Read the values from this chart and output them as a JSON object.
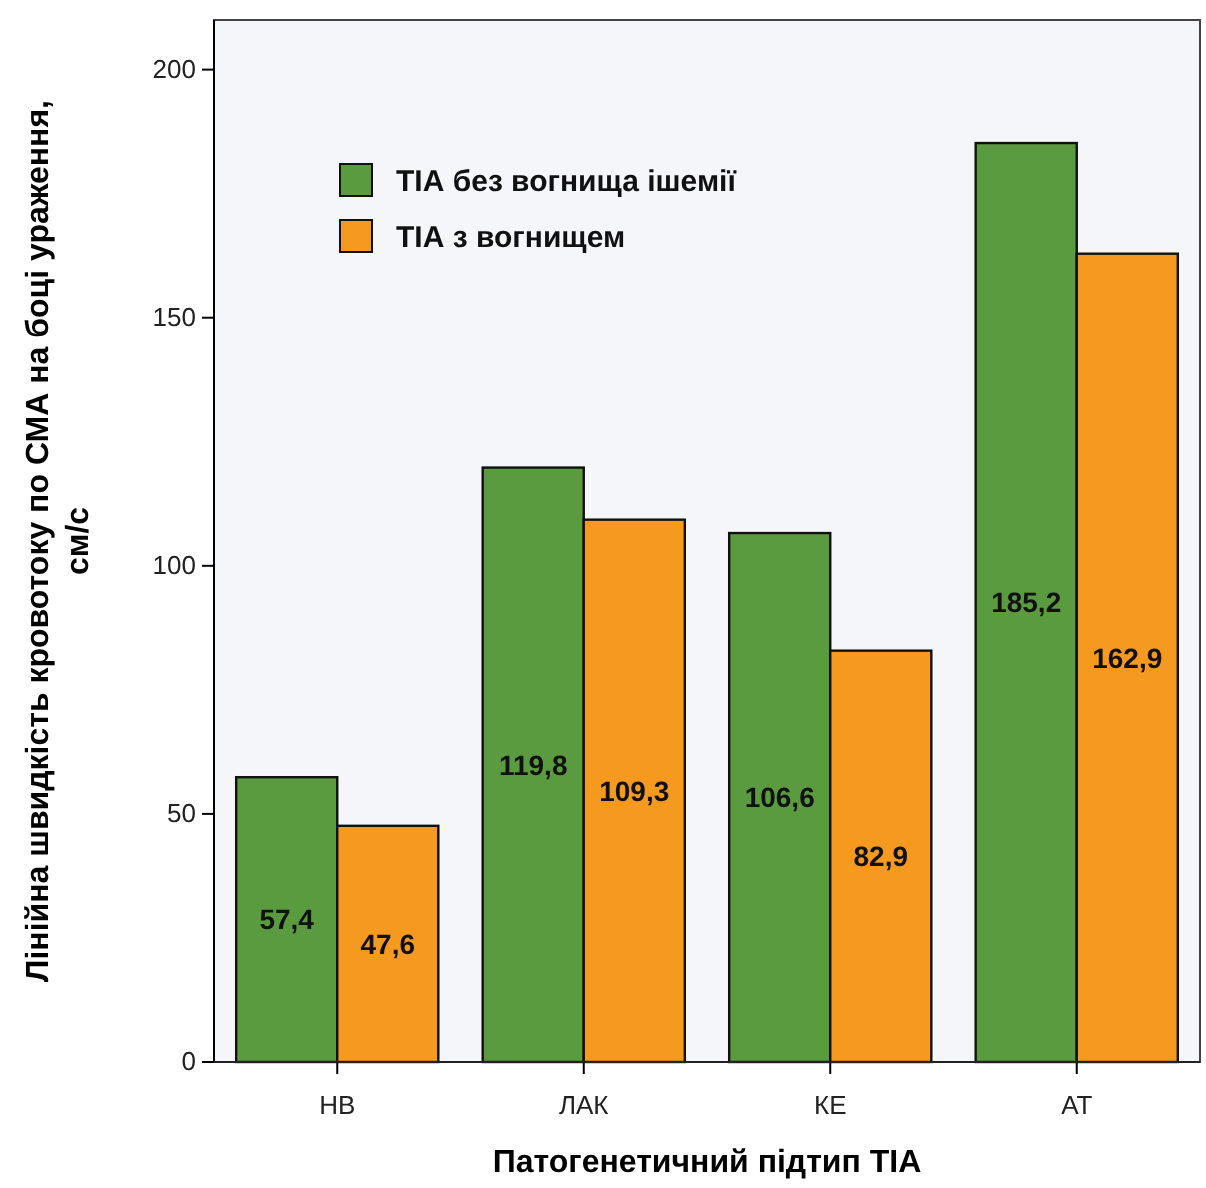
{
  "chart_data": {
    "type": "bar",
    "xlabel": "Патогенетичний підтип ТІА",
    "ylabel": "Лінійна швидкість кровотоку по СМА на боці ураження,\nсм/с",
    "categories": [
      "НВ",
      "ЛАК",
      "КЕ",
      "АТ"
    ],
    "series": [
      {
        "name": "ТІА без вогнища ішемії",
        "color": "#5b9b40",
        "values": [
          57.4,
          119.8,
          106.6,
          185.2
        ],
        "value_labels": [
          "57,4",
          "119,8",
          "106,6",
          "185,2"
        ]
      },
      {
        "name": "ТІА з вогнищем",
        "color": "#f59a1e",
        "values": [
          47.6,
          109.3,
          82.9,
          162.9
        ],
        "value_labels": [
          "47,6",
          "109,3",
          "82,9",
          "162,9"
        ]
      }
    ],
    "ylim": [
      0,
      210
    ],
    "yticks": [
      0,
      50,
      100,
      150,
      200
    ],
    "legend": "top left",
    "grid": false
  }
}
